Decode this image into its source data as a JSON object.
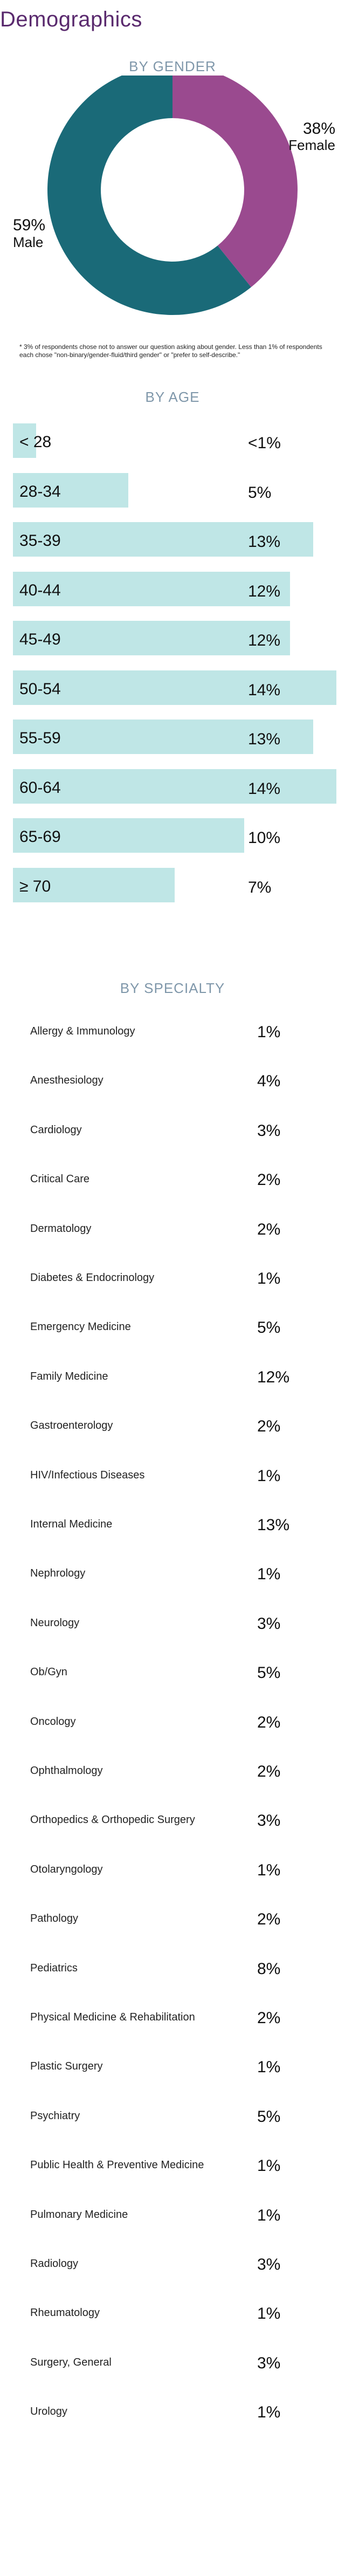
{
  "page": {
    "title": "Demographics"
  },
  "gender": {
    "section_title": "BY GENDER",
    "note": "* 3% of respondents chose not to answer our question asking about gender. Less than 1% of respondents each chose \"non-binary/gender-fluid/third gender\" or \"prefer to self-describe.\"",
    "colors": {
      "female": "#9a4a8f",
      "male": "#1a6a78"
    }
  },
  "age": {
    "section_title": "BY AGE",
    "bar_color": "#bfe6e6"
  },
  "specialty": {
    "section_title": "BY SPECIALTY"
  },
  "chart_data": [
    {
      "type": "pie",
      "title": "BY GENDER",
      "slices": [
        {
          "label": "Female",
          "value": 38,
          "value_label": "38%"
        },
        {
          "label": "Male",
          "value": 59,
          "value_label": "59%"
        }
      ]
    },
    {
      "type": "bar",
      "title": "BY AGE",
      "categories": [
        "< 28",
        "28-34",
        "35-39",
        "40-44",
        "45-49",
        "50-54",
        "55-59",
        "60-64",
        "65-69",
        "≥ 70"
      ],
      "values": [
        1,
        5,
        13,
        12,
        12,
        14,
        13,
        14,
        10,
        7
      ],
      "value_labels": [
        "<1%",
        "5%",
        "13%",
        "12%",
        "12%",
        "14%",
        "13%",
        "14%",
        "10%",
        "7%"
      ],
      "xlim": [
        0,
        14
      ]
    },
    {
      "type": "table",
      "title": "BY SPECIALTY",
      "rows": [
        {
          "label": "Allergy & Immunology",
          "value": "1%"
        },
        {
          "label": "Anesthesiology",
          "value": "4%"
        },
        {
          "label": "Cardiology",
          "value": "3%"
        },
        {
          "label": "Critical Care",
          "value": "2%"
        },
        {
          "label": "Dermatology",
          "value": "2%"
        },
        {
          "label": "Diabetes & Endocrinology",
          "value": "1%"
        },
        {
          "label": "Emergency Medicine",
          "value": "5%"
        },
        {
          "label": "Family Medicine",
          "value": "12%"
        },
        {
          "label": "Gastroenterology",
          "value": "2%"
        },
        {
          "label": "HIV/Infectious Diseases",
          "value": "1%"
        },
        {
          "label": "Internal Medicine",
          "value": "13%"
        },
        {
          "label": "Nephrology",
          "value": "1%"
        },
        {
          "label": "Neurology",
          "value": "3%"
        },
        {
          "label": "Ob/Gyn",
          "value": "5%"
        },
        {
          "label": "Oncology",
          "value": "2%"
        },
        {
          "label": "Ophthalmology",
          "value": "2%"
        },
        {
          "label": "Orthopedics & Orthopedic Surgery",
          "value": "3%"
        },
        {
          "label": "Otolaryngology",
          "value": "1%"
        },
        {
          "label": "Pathology",
          "value": "2%"
        },
        {
          "label": "Pediatrics",
          "value": "8%"
        },
        {
          "label": "Physical Medicine & Rehabilitation",
          "value": "2%"
        },
        {
          "label": "Plastic Surgery",
          "value": "1%"
        },
        {
          "label": "Psychiatry",
          "value": "5%"
        },
        {
          "label": "Public Health & Preventive Medicine",
          "value": "1%"
        },
        {
          "label": "Pulmonary Medicine",
          "value": "1%"
        },
        {
          "label": "Radiology",
          "value": "3%"
        },
        {
          "label": "Rheumatology",
          "value": "1%"
        },
        {
          "label": "Surgery, General",
          "value": "3%"
        },
        {
          "label": "Urology",
          "value": "1%"
        }
      ]
    }
  ]
}
